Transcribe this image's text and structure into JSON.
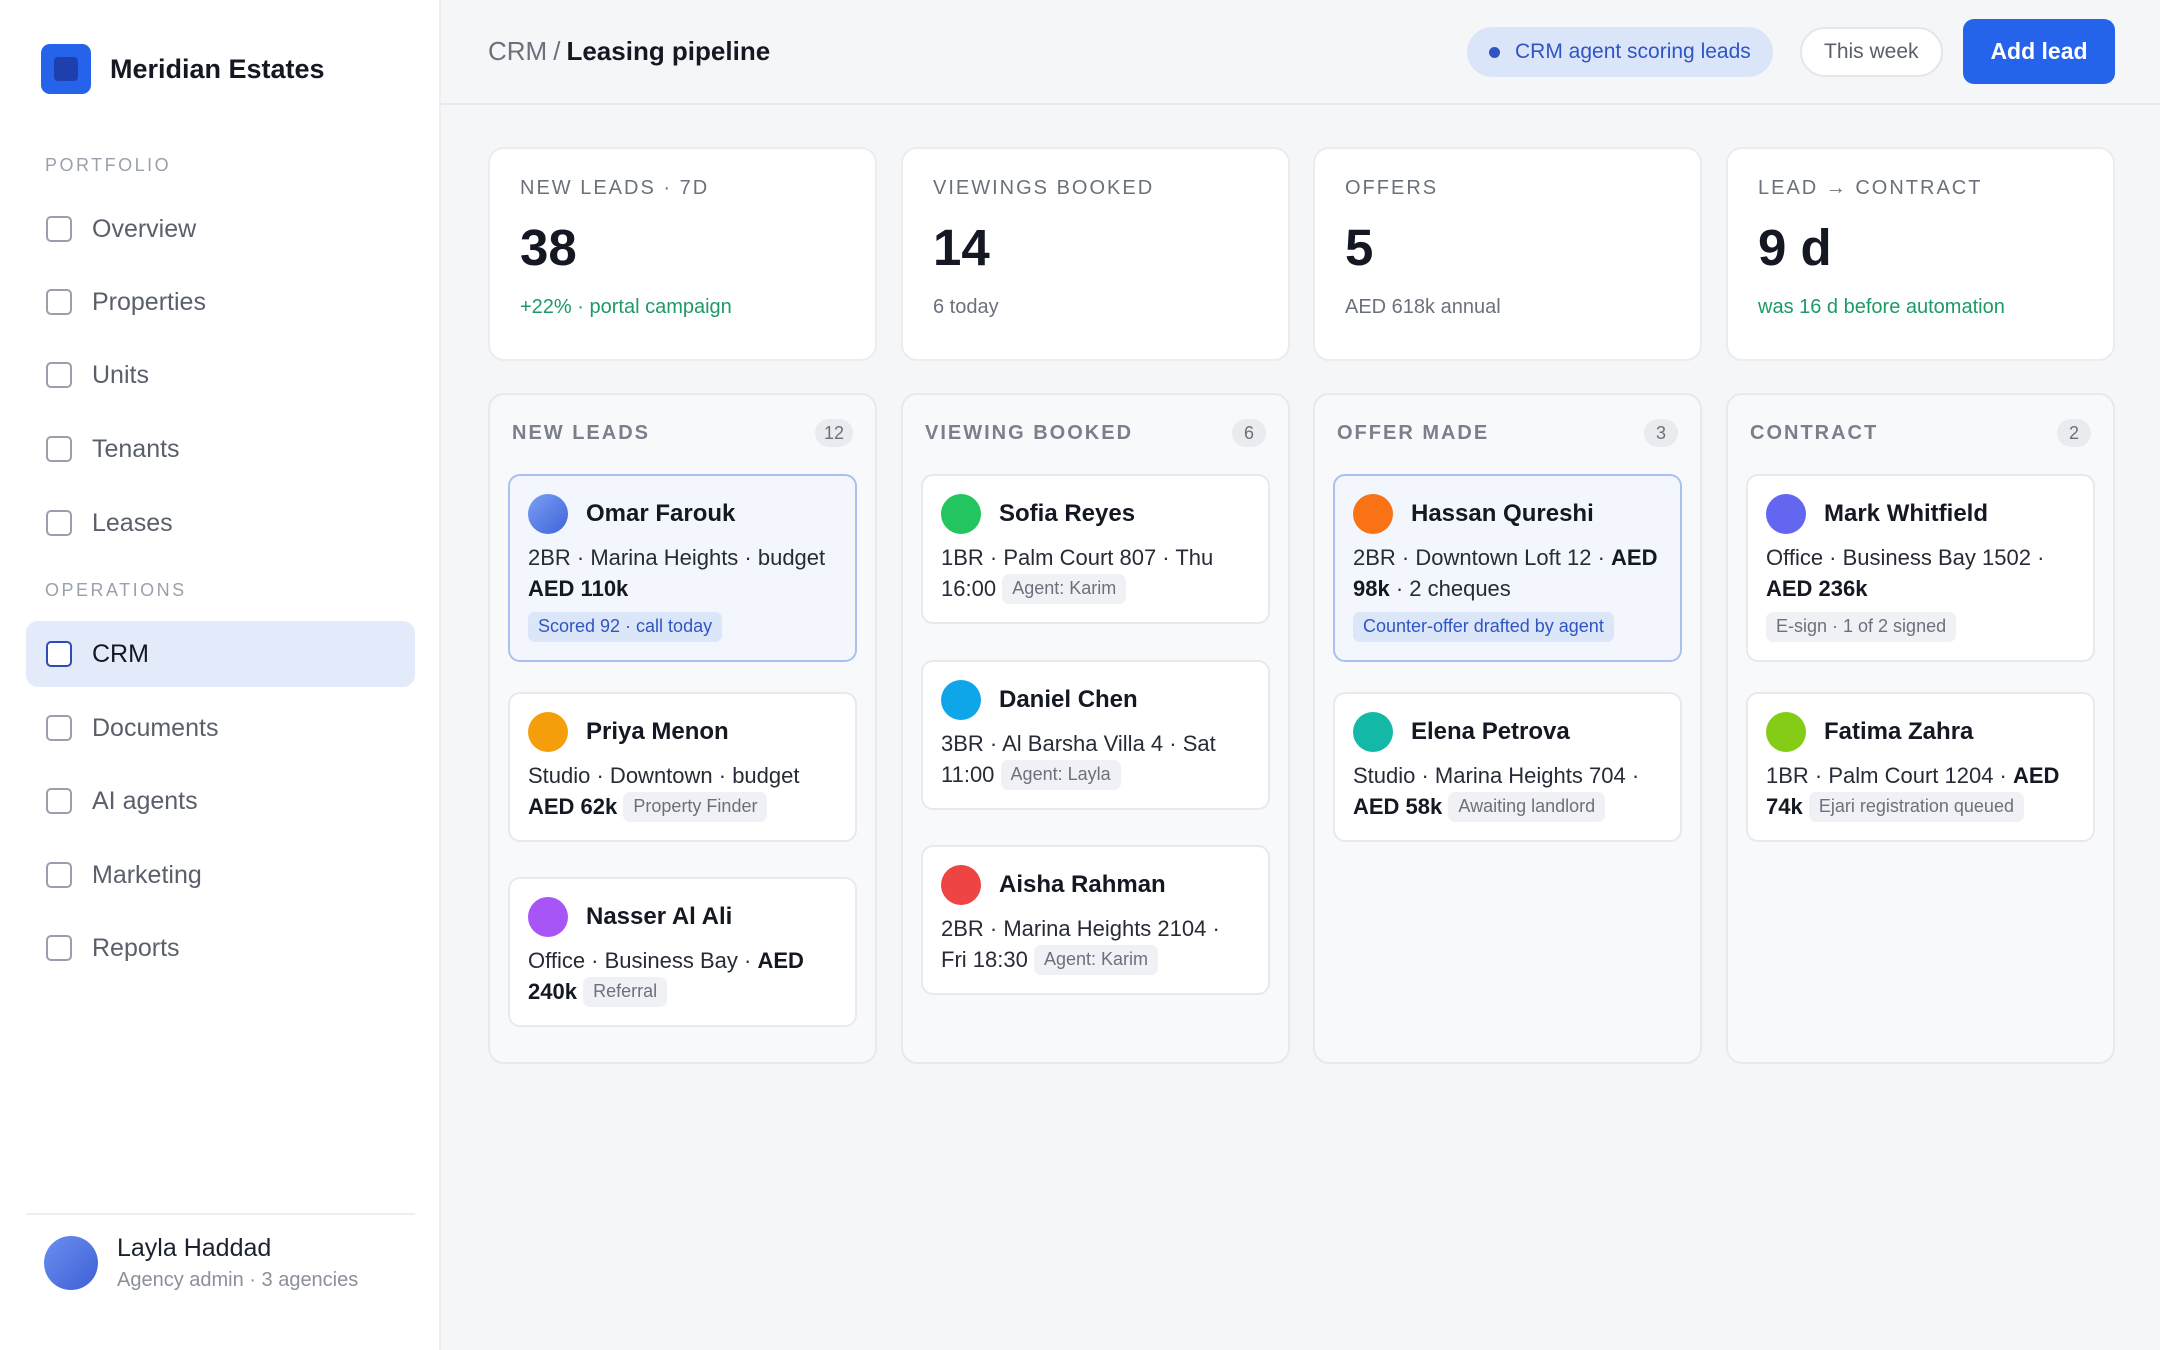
{
  "brand": {
    "name": "Meridian Estates",
    "logo_icon": "building-icon",
    "color": "#2563eb"
  },
  "sidebar": {
    "portfolio_label": "PORTFOLIO",
    "operations_label": "OPERATIONS",
    "portfolio_items": [
      {
        "label": "Overview"
      },
      {
        "label": "Properties"
      },
      {
        "label": "Units"
      },
      {
        "label": "Tenants"
      },
      {
        "label": "Leases"
      }
    ],
    "operations_items": [
      {
        "label": "CRM",
        "active": true
      },
      {
        "label": "Documents"
      },
      {
        "label": "AI agents"
      },
      {
        "label": "Marketing"
      },
      {
        "label": "Reports"
      }
    ],
    "user": {
      "name": "Layla Haddad",
      "role": "Agency admin · 3 agencies"
    }
  },
  "header": {
    "breadcrumb_parent": "CRM",
    "breadcrumb_sep": "/",
    "breadcrumb_current": "Leasing pipeline",
    "status_pill": "CRM agent scoring leads",
    "period": "This week",
    "add_label": "Add lead"
  },
  "stats": [
    {
      "title": "NEW LEADS · 7D",
      "value": "38",
      "note": "+22% · portal campaign",
      "note_color": "green"
    },
    {
      "title": "VIEWINGS BOOKED",
      "value": "14",
      "note": "6 today",
      "note_color": "gray"
    },
    {
      "title": "OFFERS",
      "value": "5",
      "note": "AED 618k annual",
      "note_color": "gray"
    },
    {
      "title": "LEAD → CONTRACT",
      "value": "9 d",
      "note": "was 16 d before automation",
      "note_color": "green"
    }
  ],
  "columns": [
    {
      "title": "NEW LEADS",
      "count": "12",
      "cards": [
        {
          "name": "Omar Farouk",
          "avatar_color": "#4f7be8",
          "text": "2BR · Marina Heights · budget ",
          "bold": "AED 110k",
          "after": "",
          "tag": "Scored 92 · call today",
          "tag_style": "blue",
          "tag_newline": true,
          "highlight": true
        },
        {
          "name": "Priya Menon",
          "avatar_color": "#f59e0b",
          "text": "Studio · Downtown · budget ",
          "bold": "AED 62k",
          "after": "",
          "tag": "Property Finder",
          "tag_style": "gray",
          "tag_newline": false,
          "highlight": false
        },
        {
          "name": "Nasser Al Ali",
          "avatar_color": "#a855f7",
          "text": "Office · Business Bay · ",
          "bold": "AED 240k",
          "after": "",
          "tag": "Referral",
          "tag_style": "gray",
          "tag_newline": false,
          "highlight": false
        }
      ]
    },
    {
      "title": "VIEWING BOOKED",
      "count": "6",
      "cards": [
        {
          "name": "Sofia Reyes",
          "avatar_color": "#22c55e",
          "text": "1BR · Palm Court 807 · Thu 16:00",
          "bold": "",
          "after": "",
          "tag": "Agent: Karim",
          "tag_style": "gray",
          "tag_newline": false,
          "highlight": false
        },
        {
          "name": "Daniel Chen",
          "avatar_color": "#0ea5e9",
          "text": "3BR · Al Barsha Villa 4 · Sat 11:00",
          "bold": "",
          "after": "",
          "tag": "Agent: Layla",
          "tag_style": "gray",
          "tag_newline": false,
          "highlight": false
        },
        {
          "name": "Aisha Rahman",
          "avatar_color": "#ef4444",
          "text": "2BR · Marina Heights 2104 · Fri 18:30",
          "bold": "",
          "after": "",
          "tag": "Agent: Karim",
          "tag_style": "gray",
          "tag_newline": false,
          "highlight": false
        }
      ]
    },
    {
      "title": "OFFER MADE",
      "count": "3",
      "cards": [
        {
          "name": "Hassan Qureshi",
          "avatar_color": "#f97316",
          "text": "2BR · Downtown Loft 12 · ",
          "bold": "AED 98k",
          "after": " · 2 cheques",
          "tag": "Counter-offer drafted by agent",
          "tag_style": "blue",
          "tag_newline": true,
          "highlight": true
        },
        {
          "name": "Elena Petrova",
          "avatar_color": "#14b8a6",
          "text": "Studio · Marina Heights 704 · ",
          "bold": "AED 58k",
          "after": "",
          "tag": "Awaiting landlord",
          "tag_style": "gray",
          "tag_newline": false,
          "highlight": false
        }
      ]
    },
    {
      "title": "CONTRACT",
      "count": "2",
      "cards": [
        {
          "name": "Mark Whitfield",
          "avatar_color": "#6366f1",
          "text": "Office · Business Bay 1502 · ",
          "bold": "AED 236k",
          "after": "",
          "tag": "E-sign · 1 of 2 signed",
          "tag_style": "gray",
          "tag_newline": true,
          "highlight": false
        },
        {
          "name": "Fatima Zahra",
          "avatar_color": "#84cc16",
          "text": "1BR · Palm Court 1204 · ",
          "bold": "AED 74k",
          "after": "",
          "tag": "Ejari registration queued",
          "tag_style": "gray",
          "tag_newline": false,
          "highlight": false
        }
      ]
    }
  ]
}
